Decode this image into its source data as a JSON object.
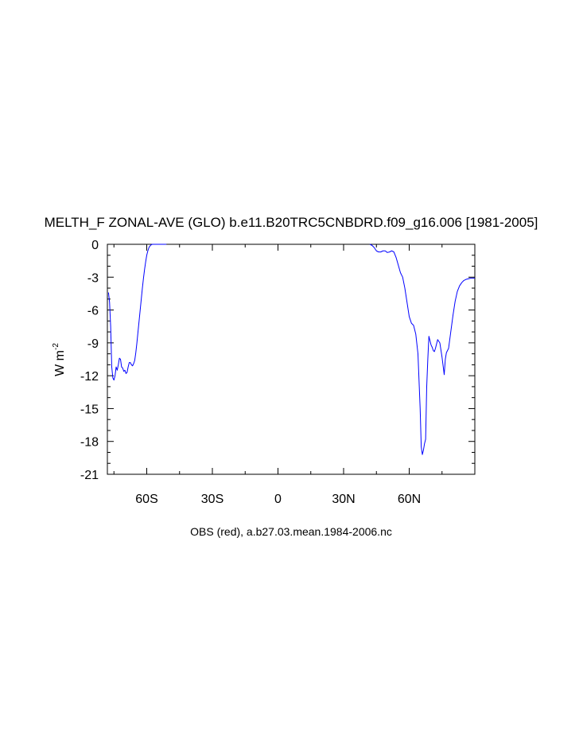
{
  "chart_data": {
    "type": "line",
    "title": "MELTH_F ZONAL-AVE (GLO) b.e11.B20TRC5CNBDRD.f09_g16.006 [1981-2005]",
    "xlabel": "OBS (red), a.b27.03.mean.1984-2006.nc",
    "ylabel": "W m",
    "ylabel_sup": "-2",
    "xlim": [
      -78,
      90
    ],
    "ylim": [
      -21,
      0
    ],
    "grid": false,
    "x_ticks": [
      {
        "value": -60,
        "label": "60S"
      },
      {
        "value": -30,
        "label": "30S"
      },
      {
        "value": 0,
        "label": "0"
      },
      {
        "value": 30,
        "label": "30N"
      },
      {
        "value": 60,
        "label": "60N"
      }
    ],
    "y_ticks": [
      {
        "value": 0,
        "label": "0"
      },
      {
        "value": -3,
        "label": "-3"
      },
      {
        "value": -6,
        "label": "-6"
      },
      {
        "value": -9,
        "label": "-9"
      },
      {
        "value": -12,
        "label": "-12"
      },
      {
        "value": -15,
        "label": "-15"
      },
      {
        "value": -18,
        "label": "-18"
      },
      {
        "value": -21,
        "label": "-21"
      }
    ],
    "series": [
      {
        "color": "#0000ff",
        "x": [
          -77.5,
          -77,
          -76.5,
          -76,
          -75.5,
          -75,
          -74.5,
          -74,
          -73.5,
          -73,
          -72.5,
          -72,
          -71.5,
          -71,
          -70.5,
          -70,
          -69.5,
          -69,
          -68.5,
          -68,
          -67.5,
          -67,
          -66.5,
          -66,
          -65.5,
          -65,
          -64.5,
          -64,
          -63.5,
          -63,
          -62.5,
          -62,
          -61.5,
          -61,
          -60.5,
          -60,
          -59.5,
          -59,
          -58.5,
          -58,
          -57.5,
          -57,
          -56.5,
          -56,
          -55.5,
          -55,
          -54.5,
          -54,
          -53,
          -52,
          -51,
          42,
          43,
          44,
          45,
          46,
          47,
          48,
          49,
          50,
          51,
          52,
          53,
          54,
          55,
          56,
          57,
          58,
          59,
          60,
          61,
          62,
          63,
          64,
          65,
          65.5,
          66,
          66.5,
          67,
          67.5,
          68,
          68.5,
          69,
          70,
          70.5,
          71,
          71.5,
          72,
          73,
          74,
          75,
          76,
          76.5,
          77,
          78,
          79,
          80,
          81,
          82,
          83,
          84,
          85,
          86,
          87,
          88,
          89,
          90
        ],
        "y": [
          -4.4,
          -5.3,
          -7.5,
          -11.2,
          -12.2,
          -12.4,
          -12.0,
          -11.2,
          -11.5,
          -11.0,
          -10.4,
          -10.5,
          -11.2,
          -11.3,
          -11.6,
          -11.5,
          -11.8,
          -11.7,
          -11.2,
          -10.8,
          -10.8,
          -11.0,
          -11.1,
          -10.9,
          -10.6,
          -9.9,
          -9.0,
          -8.0,
          -7.0,
          -6.0,
          -5.0,
          -4.0,
          -3.1,
          -2.3,
          -1.6,
          -1.0,
          -0.6,
          -0.3,
          -0.15,
          -0.05,
          0,
          0,
          0,
          0,
          0,
          0,
          0,
          0,
          0,
          0,
          0,
          0,
          -0.1,
          -0.3,
          -0.6,
          -0.7,
          -0.7,
          -0.6,
          -0.6,
          -0.75,
          -0.7,
          -0.6,
          -0.7,
          -1.2,
          -1.9,
          -2.6,
          -3.0,
          -4.0,
          -5.3,
          -6.6,
          -7.2,
          -7.4,
          -8.2,
          -10.0,
          -15.0,
          -18.5,
          -19.2,
          -18.8,
          -18.2,
          -17.8,
          -13.0,
          -10.5,
          -8.4,
          -9.2,
          -9.4,
          -9.7,
          -9.8,
          -9.5,
          -8.7,
          -9.0,
          -10.3,
          -11.9,
          -10.5,
          -9.9,
          -9.5,
          -8.0,
          -6.5,
          -5.2,
          -4.3,
          -3.8,
          -3.5,
          -3.3,
          -3.2,
          -3.15,
          -3.1,
          -3.1,
          -3.1
        ]
      }
    ]
  }
}
